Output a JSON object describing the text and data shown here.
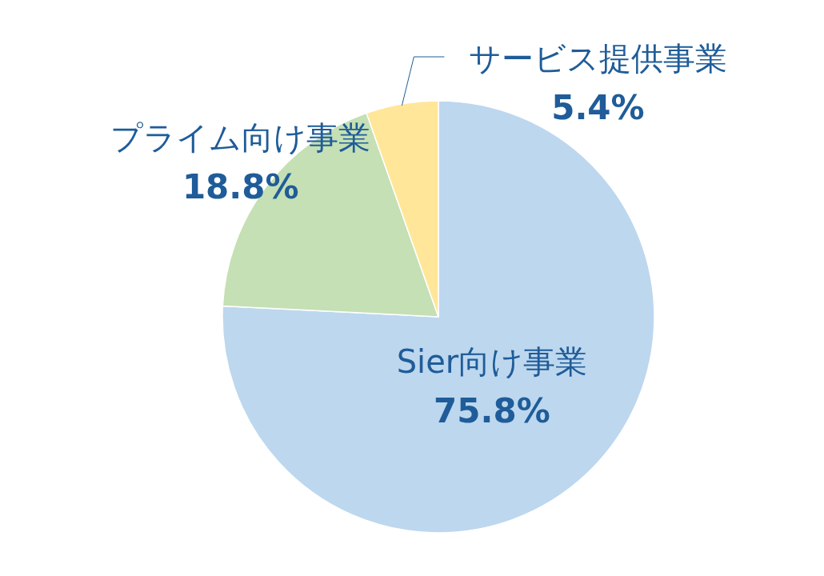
{
  "chart_data": {
    "type": "pie",
    "categories": [
      "Sier向け事業",
      "プライム向け事業",
      "サービス提供事業"
    ],
    "values": [
      75.8,
      18.8,
      5.4
    ],
    "colors": [
      "#bdd7ee",
      "#c5e0b4",
      "#ffe699"
    ],
    "value_labels": [
      "75.8%",
      "18.8%",
      "5.4%"
    ]
  }
}
